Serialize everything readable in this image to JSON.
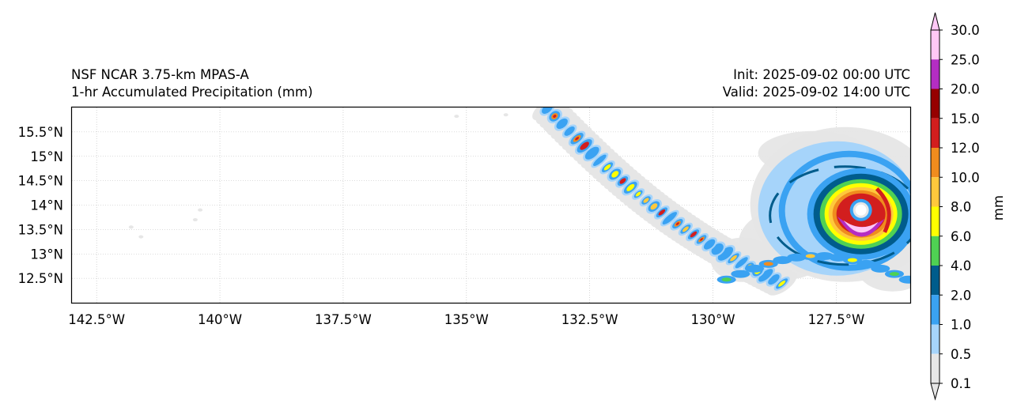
{
  "header": {
    "model": "NSF NCAR 3.75-km MPAS-A",
    "field": "1-hr Accumulated Precipitation (mm)",
    "init": "Init: 2025-09-02 00:00 UTC",
    "valid": "Valid: 2025-09-02 14:00 UTC"
  },
  "map": {
    "lon_range": [
      -143.0,
      -126.0
    ],
    "lat_range": [
      12.0,
      16.0
    ],
    "lon_ticks": [
      {
        "value": -142.5,
        "label": "142.5°W"
      },
      {
        "value": -140.0,
        "label": "140°W"
      },
      {
        "value": -137.5,
        "label": "137.5°W"
      },
      {
        "value": -135.0,
        "label": "135°W"
      },
      {
        "value": -132.5,
        "label": "132.5°W"
      },
      {
        "value": -130.0,
        "label": "130°W"
      },
      {
        "value": -127.5,
        "label": "127.5°W"
      }
    ],
    "lat_ticks": [
      {
        "value": 15.5,
        "label": "15.5°N"
      },
      {
        "value": 15.0,
        "label": "15°N"
      },
      {
        "value": 14.5,
        "label": "14.5°N"
      },
      {
        "value": 14.0,
        "label": "14°N"
      },
      {
        "value": 13.5,
        "label": "13.5°N"
      },
      {
        "value": 13.0,
        "label": "13°N"
      },
      {
        "value": 12.5,
        "label": "12.5°N"
      }
    ],
    "storm_center": {
      "lon": -127.0,
      "lat": 13.85
    },
    "gridlines": true
  },
  "colorbar": {
    "label": "mm",
    "levels": [
      "0.1",
      "0.5",
      "1.0",
      "2.0",
      "4.0",
      "6.0",
      "8.0",
      "10.0",
      "12.0",
      "15.0",
      "20.0",
      "25.0",
      "30.0"
    ],
    "colors": [
      "#e6e6e6",
      "#a6d4fa",
      "#3aa2f2",
      "#005c8c",
      "#4fd153",
      "#ffff00",
      "#ffc83c",
      "#f08c1e",
      "#d21e1e",
      "#960000",
      "#b42dc3",
      "#ffc8f5"
    ],
    "extend": "both"
  }
}
